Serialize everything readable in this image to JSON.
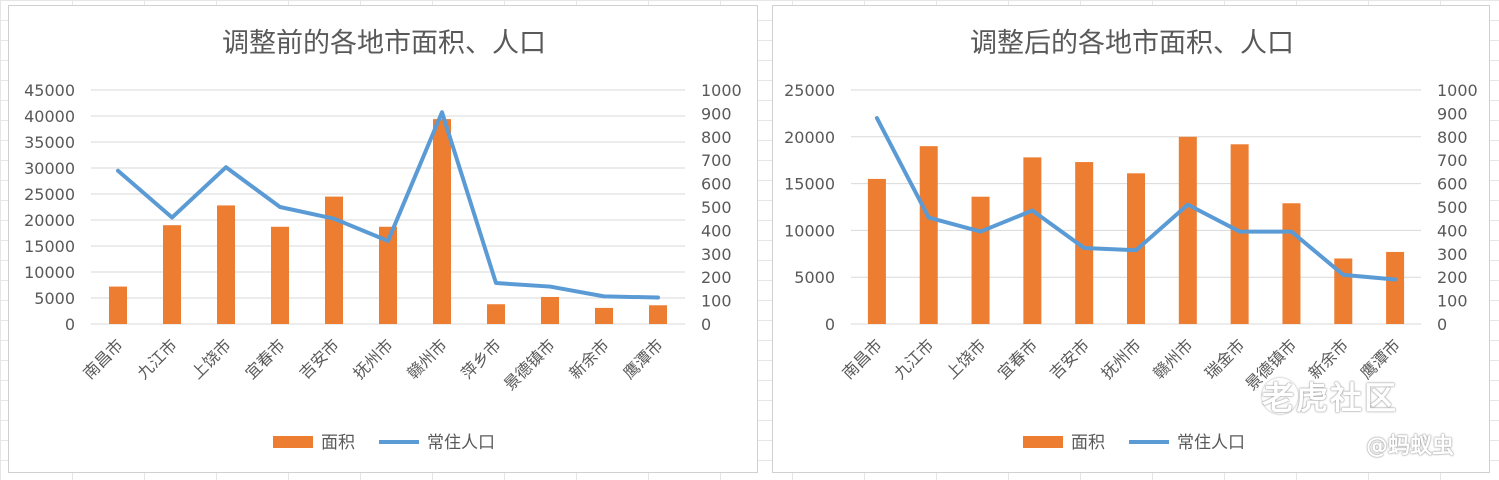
{
  "chart_data": [
    {
      "type": "bar+line",
      "title": "调整前的各地市面积、人口",
      "categories": [
        "南昌市",
        "九江市",
        "上饶市",
        "宜春市",
        "吉安市",
        "抚州市",
        "赣州市",
        "萍乡市",
        "景德镇市",
        "新余市",
        "鹰潭市"
      ],
      "series": [
        {
          "name": "面积",
          "type": "bar",
          "axis": "left",
          "color": "#ED7D31",
          "values": [
            7200,
            19000,
            22800,
            18700,
            24500,
            18700,
            39400,
            3800,
            5200,
            3100,
            3600
          ]
        },
        {
          "name": "常住人口",
          "type": "line",
          "axis": "right",
          "color": "#5B9BD5",
          "values": [
            655,
            455,
            670,
            500,
            450,
            355,
            905,
            175,
            160,
            118,
            113
          ]
        }
      ],
      "y_left": {
        "min": 0,
        "max": 45000,
        "step": 5000
      },
      "y_right": {
        "min": 0,
        "max": 1000,
        "step": 100
      },
      "grid": true,
      "legend": "bottom"
    },
    {
      "type": "bar+line",
      "title": "调整后的各地市面积、人口",
      "categories": [
        "南昌市",
        "九江市",
        "上饶市",
        "宜春市",
        "吉安市",
        "抚州市",
        "赣州市",
        "瑞金市",
        "景德镇市",
        "新余市",
        "鹰潭市"
      ],
      "series": [
        {
          "name": "面积",
          "type": "bar",
          "axis": "left",
          "color": "#ED7D31",
          "values": [
            15500,
            19000,
            13600,
            17800,
            17300,
            16100,
            20000,
            19200,
            12900,
            7000,
            7700
          ]
        },
        {
          "name": "常住人口",
          "type": "line",
          "axis": "right",
          "color": "#5B9BD5",
          "values": [
            880,
            455,
            395,
            485,
            325,
            315,
            510,
            395,
            395,
            210,
            190
          ]
        }
      ],
      "y_left": {
        "min": 0,
        "max": 25000,
        "step": 5000
      },
      "y_right": {
        "min": 0,
        "max": 1000,
        "step": 100
      },
      "grid": true,
      "legend": "bottom"
    }
  ],
  "watermark": {
    "logo_text": "老虎社区",
    "user_text": "@蚂蚁虫"
  }
}
